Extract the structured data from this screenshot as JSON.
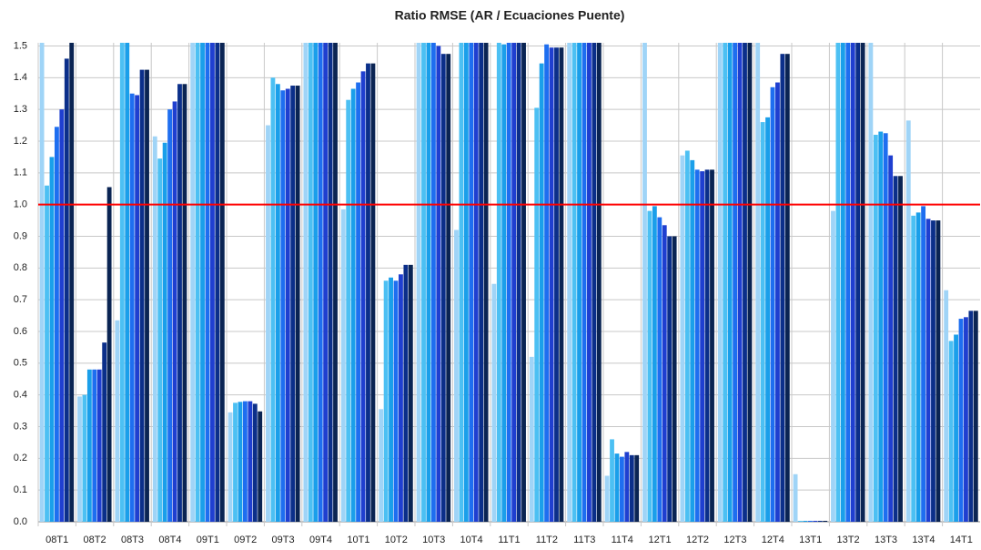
{
  "chart_data": {
    "type": "bar",
    "title": "Ratio RMSE (AR /  Ecuaciones Puente)",
    "categories": [
      "08T1",
      "08T2",
      "08T3",
      "08T4",
      "09T1",
      "09T2",
      "09T3",
      "09T4",
      "10T1",
      "10T2",
      "10T3",
      "10T4",
      "11T1",
      "11T2",
      "11T3",
      "11T4",
      "12T1",
      "12T2",
      "12T3",
      "12T4",
      "13T1",
      "13T2",
      "13T3",
      "13T4",
      "14T1"
    ],
    "series": [
      {
        "color": "#9fd4f7",
        "values": [
          1.51,
          0.395,
          0.635,
          1.215,
          1.51,
          0.345,
          1.25,
          1.51,
          0.985,
          0.355,
          1.51,
          0.92,
          0.75,
          0.52,
          1.51,
          0.145,
          1.51,
          1.155,
          1.51,
          1.51,
          0.15,
          0.98,
          1.51,
          1.265,
          0.73
        ]
      },
      {
        "color": "#4cc0f3",
        "values": [
          1.06,
          0.4,
          1.51,
          1.145,
          1.51,
          0.375,
          1.4,
          1.51,
          1.33,
          0.76,
          1.51,
          1.51,
          1.51,
          1.305,
          1.51,
          0.26,
          0.98,
          1.17,
          1.51,
          1.26,
          0.003,
          1.51,
          1.22,
          0.965,
          0.57
        ]
      },
      {
        "color": "#1a9fea",
        "values": [
          1.15,
          0.48,
          1.51,
          1.195,
          1.51,
          0.378,
          1.38,
          1.51,
          1.365,
          0.77,
          1.51,
          1.51,
          1.505,
          1.445,
          1.51,
          0.215,
          0.995,
          1.14,
          1.51,
          1.275,
          0.003,
          1.51,
          1.23,
          0.975,
          0.59
        ]
      },
      {
        "color": "#1e6ef0",
        "values": [
          1.245,
          0.48,
          1.35,
          1.3,
          1.51,
          0.38,
          1.36,
          1.51,
          1.385,
          0.76,
          1.51,
          1.51,
          1.51,
          1.505,
          1.51,
          0.205,
          0.96,
          1.11,
          1.51,
          1.37,
          0.003,
          1.51,
          1.225,
          0.995,
          0.64
        ]
      },
      {
        "color": "#1f3fd0",
        "values": [
          1.3,
          0.48,
          1.345,
          1.325,
          1.51,
          0.38,
          1.365,
          1.51,
          1.42,
          0.78,
          1.5,
          1.51,
          1.51,
          1.495,
          1.51,
          0.22,
          0.935,
          1.105,
          1.51,
          1.385,
          0.003,
          1.51,
          1.155,
          0.955,
          0.645
        ]
      },
      {
        "color": "#0b2f8a",
        "values": [
          1.46,
          0.565,
          1.425,
          1.38,
          1.51,
          0.372,
          1.375,
          1.51,
          1.445,
          0.81,
          1.475,
          1.51,
          1.51,
          1.495,
          1.51,
          0.21,
          0.9,
          1.11,
          1.51,
          1.475,
          0.003,
          1.51,
          1.09,
          0.95,
          0.665
        ]
      },
      {
        "color": "#0a2453",
        "values": [
          1.51,
          1.055,
          1.425,
          1.38,
          1.51,
          0.348,
          1.375,
          1.51,
          1.445,
          0.81,
          1.475,
          1.51,
          1.51,
          1.495,
          1.51,
          0.21,
          0.9,
          1.11,
          1.51,
          1.475,
          0.003,
          1.51,
          1.09,
          0.95,
          0.665
        ]
      }
    ],
    "ylim": [
      0,
      1.51
    ],
    "yticks": [
      {
        "value": 0,
        "label": "0.0"
      },
      {
        "value": 0.1,
        "label": "0.1"
      },
      {
        "value": 0.2,
        "label": "0.2"
      },
      {
        "value": 0.3,
        "label": "0.3"
      },
      {
        "value": 0.4,
        "label": "0.4"
      },
      {
        "value": 0.5,
        "label": "0.5"
      },
      {
        "value": 0.6,
        "label": "0.6"
      },
      {
        "value": 0.7,
        "label": "0.7"
      },
      {
        "value": 0.8,
        "label": "0.8"
      },
      {
        "value": 0.9,
        "label": "0.9"
      },
      {
        "value": 1,
        "label": "1.0"
      },
      {
        "value": 1.1,
        "label": "1.1"
      },
      {
        "value": 1.2,
        "label": "1.2"
      },
      {
        "value": 1.3,
        "label": "1.3"
      },
      {
        "value": 1.4,
        "label": "1.4"
      },
      {
        "value": 1.5,
        "label": "1.5"
      }
    ],
    "grid": true,
    "reference_line": {
      "value": 1,
      "color": "#ff0000"
    }
  }
}
